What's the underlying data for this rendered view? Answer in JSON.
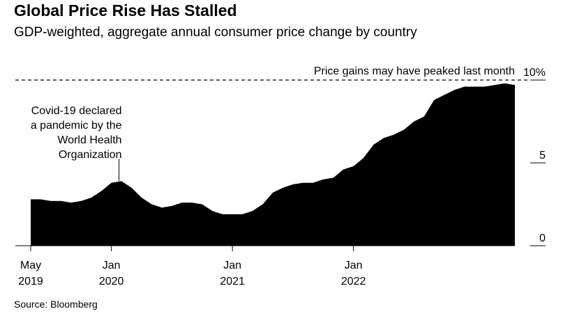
{
  "title": "Global Price Rise Has Stalled",
  "subtitle": "GDP-weighted, aggregate annual consumer price change by country",
  "source": "Source: Bloomberg",
  "chart_data": {
    "type": "area",
    "title": "Global Price Rise Has Stalled",
    "subtitle": "GDP-weighted, aggregate annual consumer price change by country",
    "xlabel": "",
    "ylabel": "",
    "ylim": [
      0,
      10
    ],
    "x_ticks": [
      {
        "month": "2019-05",
        "line1": "May",
        "line2": "2019"
      },
      {
        "month": "2020-01",
        "line1": "Jan",
        "line2": "2020"
      },
      {
        "month": "2021-01",
        "line1": "Jan",
        "line2": "2021"
      },
      {
        "month": "2022-01",
        "line1": "Jan",
        "line2": "2022"
      }
    ],
    "y_ticks": [
      {
        "value": 0,
        "label": "0"
      },
      {
        "value": 5,
        "label": "5"
      },
      {
        "value": 10,
        "label": "10%"
      }
    ],
    "grid": false,
    "color": "#000000",
    "series": [
      {
        "x": [
          "2019-05",
          "2019-06",
          "2019-07",
          "2019-08",
          "2019-09",
          "2019-10",
          "2019-11",
          "2019-12",
          "2020-01",
          "2020-02",
          "2020-03",
          "2020-04",
          "2020-05",
          "2020-06",
          "2020-07",
          "2020-08",
          "2020-09",
          "2020-10",
          "2020-11",
          "2020-12",
          "2021-01",
          "2021-02",
          "2021-03",
          "2021-04",
          "2021-05",
          "2021-06",
          "2021-07",
          "2021-08",
          "2021-09",
          "2021-10",
          "2021-11",
          "2021-12",
          "2022-01",
          "2022-02",
          "2022-03",
          "2022-04",
          "2022-05",
          "2022-06",
          "2022-07",
          "2022-08",
          "2022-09",
          "2022-10",
          "2022-11",
          "2022-12",
          "2023-01",
          "2023-02",
          "2023-03",
          "2023-04",
          "2023-05"
        ],
        "values": [
          2.8,
          2.8,
          2.7,
          2.7,
          2.6,
          2.7,
          2.9,
          3.3,
          3.8,
          3.9,
          3.5,
          2.9,
          2.5,
          2.3,
          2.4,
          2.6,
          2.6,
          2.5,
          2.1,
          1.9,
          1.9,
          1.9,
          2.1,
          2.5,
          3.2,
          3.5,
          3.7,
          3.8,
          3.8,
          4.0,
          4.1,
          4.6,
          4.8,
          5.3,
          6.1,
          6.5,
          6.7,
          7.0,
          7.5,
          7.8,
          8.8,
          9.1,
          9.4,
          9.6,
          9.6,
          9.6,
          9.7,
          9.8,
          9.7
        ]
      }
    ],
    "annotations": [
      {
        "id": "covid",
        "month": "2020-03",
        "lines": [
          "Covid-19 declared",
          "a pandemic by the",
          "World Health",
          "Organization"
        ]
      },
      {
        "id": "peak",
        "text": "Price gains may have peaked last month",
        "value": 10
      }
    ]
  }
}
